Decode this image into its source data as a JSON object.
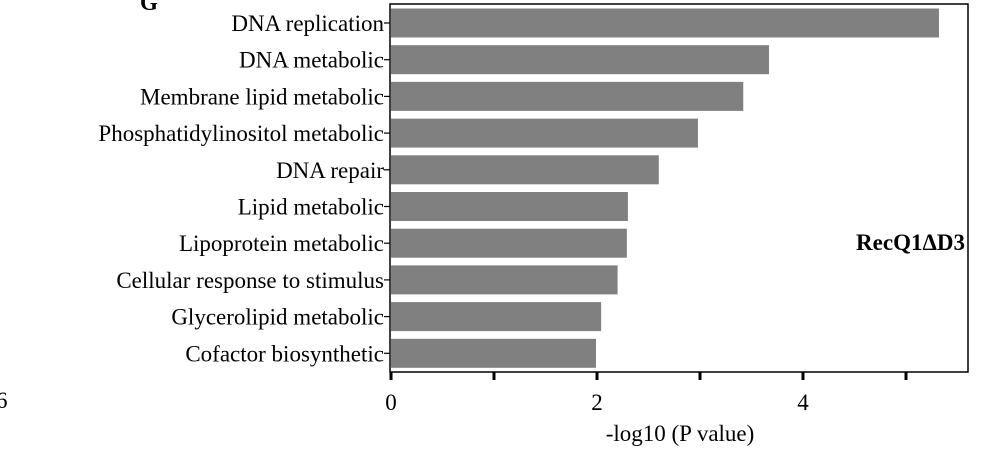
{
  "chart_data": {
    "type": "bar",
    "orientation": "horizontal",
    "categories": [
      "DNA replication",
      "DNA metabolic",
      "Membrane lipid metabolic",
      "Phosphatidylinositol metabolic",
      "DNA repair",
      "Lipid metabolic",
      "Lipoprotein metabolic",
      "Cellular response to stimulus",
      "Glycerolipid metabolic",
      "Cofactor biosynthetic"
    ],
    "values": [
      5.32,
      3.67,
      3.42,
      2.98,
      2.6,
      2.3,
      2.29,
      2.2,
      2.04,
      1.99
    ],
    "xlabel": "-log10 (P value)",
    "ylabel": "",
    "xlim": [
      0,
      5.6
    ],
    "xticks": [
      0,
      2,
      4
    ],
    "xtick_labels": [
      "0",
      "2",
      "4"
    ],
    "annotation": "RecQ1ΔD3",
    "grid": false,
    "bar_color": "#808080",
    "cropped_fragments": {
      "top_left_letter": "G",
      "left_edge_digit": "6"
    }
  }
}
